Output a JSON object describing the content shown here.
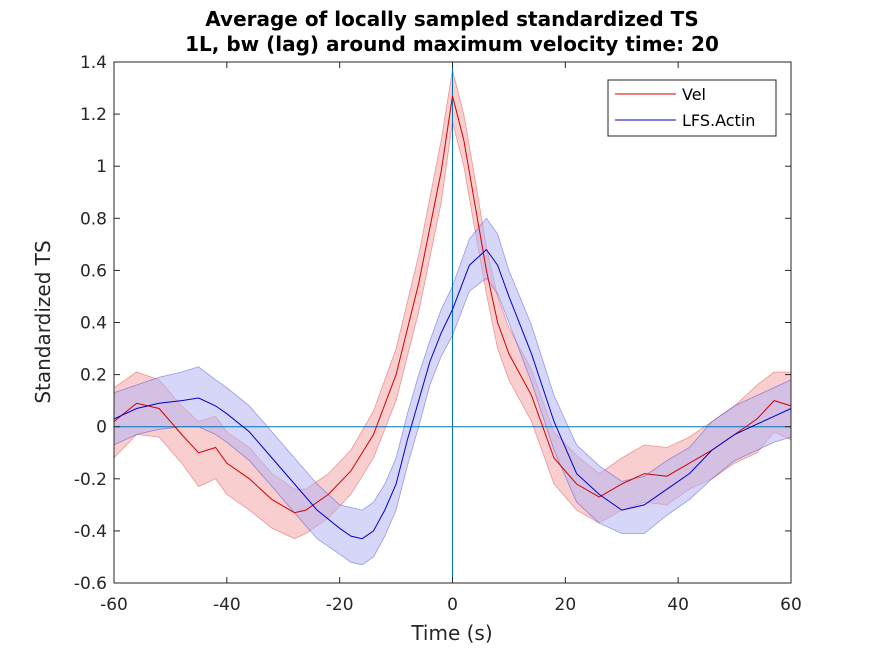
{
  "chart_data": {
    "type": "line",
    "title": [
      "Average of locally sampled standardized TS",
      "1L, bw (lag) around maximum velocity time: 20"
    ],
    "xlabel": "Time (s)",
    "ylabel": "Standardized TS",
    "xlim": [
      -60,
      60
    ],
    "ylim": [
      -0.6,
      1.4
    ],
    "xticks": [
      -60,
      -40,
      -20,
      0,
      20,
      40,
      60
    ],
    "xtick_labels": [
      "-60",
      "-40",
      "-20",
      "0",
      "20",
      "40",
      "60"
    ],
    "yticks": [
      -0.6,
      -0.4,
      -0.2,
      0,
      0.2,
      0.4,
      0.6,
      0.8,
      1,
      1.2,
      1.4
    ],
    "ytick_labels": [
      "-0.6",
      "-0.4",
      "-0.2",
      "0",
      "0.2",
      "0.4",
      "0.6",
      "0.8",
      "1",
      "1.2",
      "1.4"
    ],
    "grid": false,
    "legend_position": "top-right",
    "reference_lines": {
      "horizontal_y": 0,
      "vertical_x": 0,
      "color": "#0072bd"
    },
    "series": [
      {
        "name": "Vel",
        "color": "#d40000",
        "band_color": "#f4a6a6",
        "x": [
          -60,
          -56,
          -52,
          -48,
          -45,
          -42,
          -40,
          -36,
          -32,
          -28,
          -26,
          -22,
          -18,
          -14,
          -10,
          -6,
          -2,
          0,
          2,
          4,
          6,
          8,
          10,
          14,
          18,
          22,
          26,
          30,
          34,
          38,
          42,
          46,
          50,
          54,
          57,
          60
        ],
        "y": [
          0.02,
          0.09,
          0.07,
          -0.03,
          -0.1,
          -0.08,
          -0.14,
          -0.2,
          -0.28,
          -0.33,
          -0.32,
          -0.26,
          -0.17,
          -0.03,
          0.2,
          0.55,
          0.98,
          1.27,
          1.1,
          0.85,
          0.6,
          0.4,
          0.28,
          0.12,
          -0.12,
          -0.22,
          -0.27,
          -0.22,
          -0.18,
          -0.19,
          -0.14,
          -0.09,
          -0.03,
          0.03,
          0.1,
          0.08
        ],
        "upper": [
          0.15,
          0.21,
          0.18,
          0.08,
          0.02,
          0.04,
          -0.02,
          -0.08,
          -0.18,
          -0.24,
          -0.24,
          -0.18,
          -0.09,
          0.06,
          0.3,
          0.66,
          1.1,
          1.37,
          1.2,
          0.95,
          0.69,
          0.5,
          0.38,
          0.22,
          -0.02,
          -0.11,
          -0.18,
          -0.12,
          -0.07,
          -0.08,
          -0.04,
          0.02,
          0.08,
          0.16,
          0.21,
          0.21
        ],
        "lower": [
          -0.12,
          -0.03,
          -0.04,
          -0.14,
          -0.23,
          -0.2,
          -0.26,
          -0.32,
          -0.39,
          -0.43,
          -0.41,
          -0.35,
          -0.26,
          -0.12,
          0.1,
          0.44,
          0.86,
          1.17,
          1.0,
          0.75,
          0.51,
          0.3,
          0.18,
          0.02,
          -0.22,
          -0.32,
          -0.37,
          -0.32,
          -0.29,
          -0.3,
          -0.24,
          -0.2,
          -0.14,
          -0.1,
          -0.02,
          -0.05
        ]
      },
      {
        "name": "LFS.Actin",
        "color": "#0000c8",
        "band_color": "#b4b4f4",
        "x": [
          -60,
          -56,
          -52,
          -48,
          -45,
          -42,
          -40,
          -36,
          -32,
          -28,
          -24,
          -20,
          -18,
          -16,
          -14,
          -12,
          -10,
          -8,
          -6,
          -4,
          -2,
          0,
          3,
          6,
          8,
          10,
          14,
          18,
          22,
          26,
          30,
          34,
          38,
          42,
          46,
          50,
          54,
          57,
          60
        ],
        "y": [
          0.03,
          0.07,
          0.09,
          0.1,
          0.11,
          0.08,
          0.05,
          -0.02,
          -0.12,
          -0.22,
          -0.32,
          -0.39,
          -0.42,
          -0.43,
          -0.4,
          -0.32,
          -0.22,
          -0.05,
          0.1,
          0.25,
          0.36,
          0.45,
          0.62,
          0.68,
          0.62,
          0.5,
          0.28,
          0.02,
          -0.18,
          -0.26,
          -0.32,
          -0.3,
          -0.24,
          -0.18,
          -0.09,
          -0.03,
          0.01,
          0.04,
          0.07
        ],
        "upper": [
          0.13,
          0.16,
          0.19,
          0.21,
          0.23,
          0.18,
          0.15,
          0.08,
          -0.02,
          -0.12,
          -0.22,
          -0.3,
          -0.31,
          -0.32,
          -0.29,
          -0.22,
          -0.12,
          0.05,
          0.2,
          0.33,
          0.45,
          0.54,
          0.72,
          0.8,
          0.74,
          0.6,
          0.39,
          0.12,
          -0.07,
          -0.15,
          -0.21,
          -0.19,
          -0.13,
          -0.08,
          0.02,
          0.08,
          0.12,
          0.15,
          0.18
        ],
        "lower": [
          -0.07,
          -0.03,
          -0.01,
          0.0,
          0.0,
          -0.03,
          -0.06,
          -0.13,
          -0.23,
          -0.33,
          -0.43,
          -0.49,
          -0.52,
          -0.53,
          -0.5,
          -0.42,
          -0.32,
          -0.15,
          0.0,
          0.16,
          0.27,
          0.35,
          0.52,
          0.57,
          0.51,
          0.4,
          0.17,
          -0.09,
          -0.29,
          -0.37,
          -0.41,
          -0.41,
          -0.34,
          -0.28,
          -0.2,
          -0.13,
          -0.09,
          -0.06,
          -0.04
        ]
      }
    ]
  }
}
